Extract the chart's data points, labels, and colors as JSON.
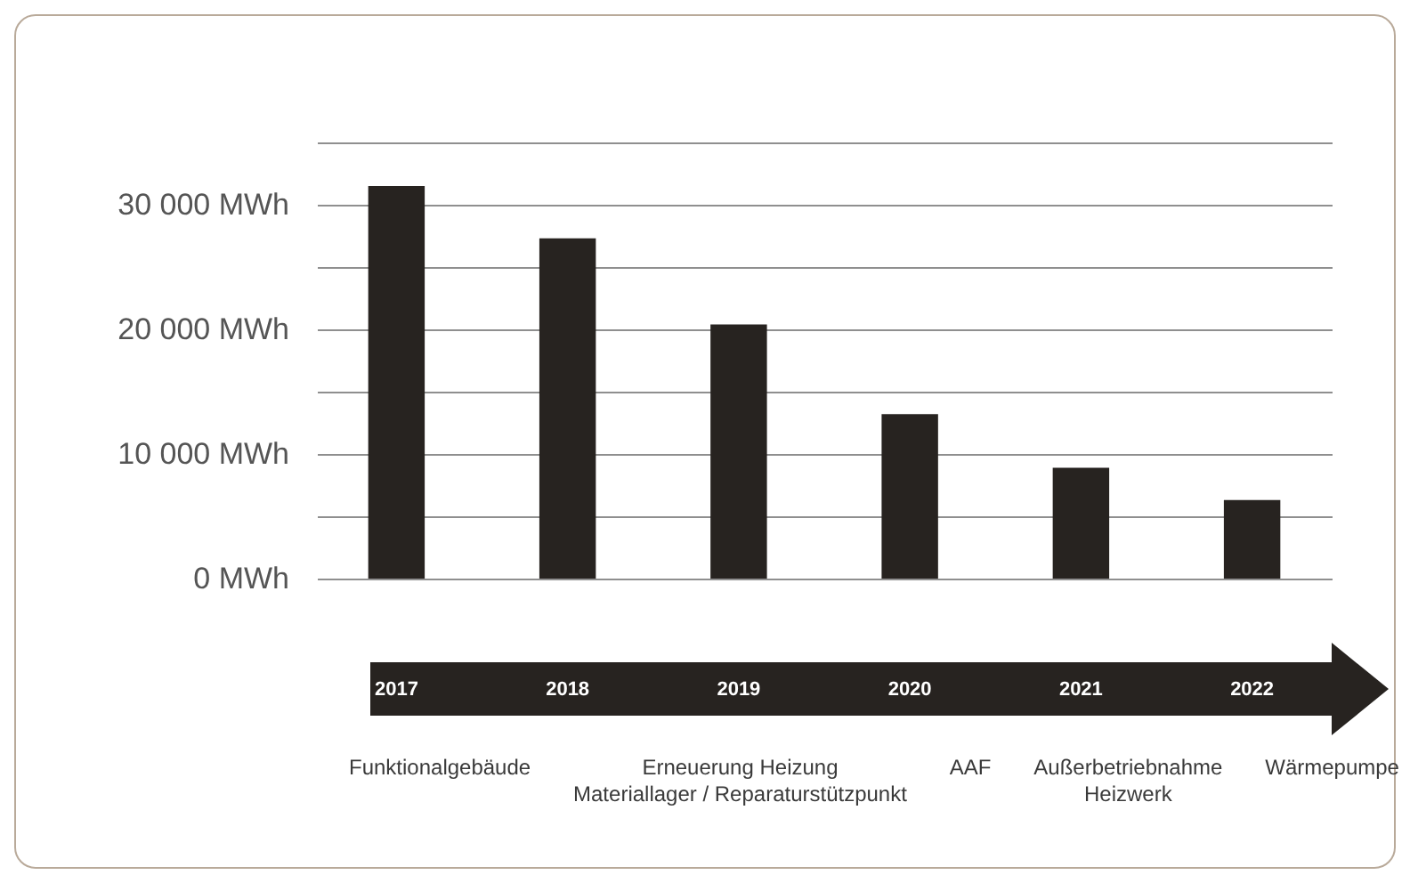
{
  "chart_data": {
    "type": "bar",
    "categories": [
      "2017",
      "2018",
      "2019",
      "2020",
      "2021",
      "2022"
    ],
    "values": [
      31500,
      27300,
      20400,
      13200,
      8900,
      6300
    ],
    "color": "#272320",
    "ylim": [
      0,
      35000
    ],
    "yticks": [
      {
        "value": 0,
        "label": "0 MWh"
      },
      {
        "value": 5000,
        "label": null
      },
      {
        "value": 10000,
        "label": "10 000 MWh"
      },
      {
        "value": 15000,
        "label": null
      },
      {
        "value": 20000,
        "label": "20 000 MWh"
      },
      {
        "value": 25000,
        "label": null
      },
      {
        "value": 30000,
        "label": "30 000 MWh"
      },
      {
        "value": 35000,
        "label": null
      }
    ],
    "grid": "y",
    "annotations": [
      "Funktionalgebäude",
      "Erneuerung Heizung\nMateriallager / Reparaturstützpunkt",
      "AAF",
      "Außerbetriebnahme\nHeizwerk",
      "Wärmepumpe"
    ]
  }
}
